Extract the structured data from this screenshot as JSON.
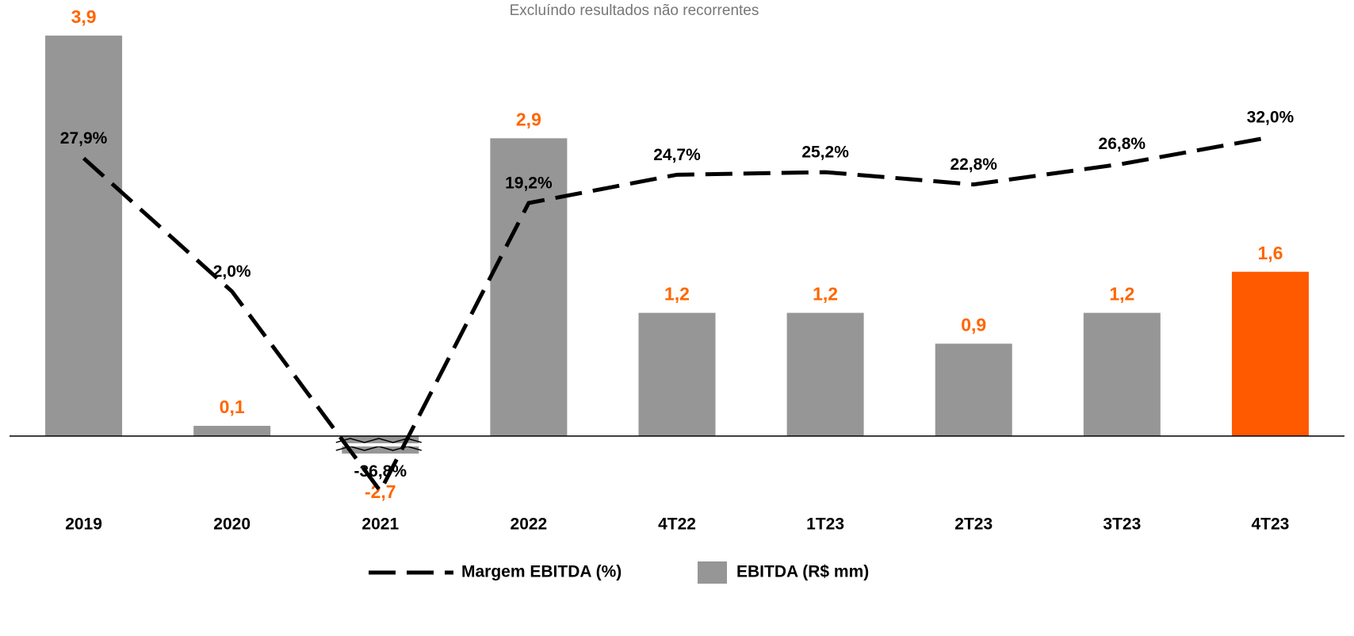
{
  "chart_data": {
    "type": "combo",
    "subtitle": "Excluíndo resultados não recorrentes",
    "categories": [
      "2019",
      "2020",
      "2021",
      "2022",
      "4T22",
      "1T23",
      "2T23",
      "3T23",
      "4T23"
    ],
    "series": [
      {
        "name": "EBITDA (R$ mm)",
        "type": "bar",
        "color": "#969696",
        "colors": [
          "#969696",
          "#969696",
          "#969696",
          "#969696",
          "#969696",
          "#969696",
          "#969696",
          "#969696",
          "#ff5a00"
        ],
        "label_color": "#ff6600",
        "values": [
          3.9,
          0.1,
          -2.7,
          2.9,
          1.2,
          1.2,
          0.9,
          1.2,
          1.6
        ],
        "value_labels": [
          "3,9",
          "0,1",
          "-2,7",
          "2,9",
          "1,2",
          "1,2",
          "0,9",
          "1,2",
          "1,6"
        ]
      },
      {
        "name": "Margem EBITDA (%)",
        "type": "line",
        "axis": "y2",
        "color": "#000000",
        "values": [
          27.9,
          2.0,
          -36.8,
          19.2,
          24.7,
          25.2,
          22.8,
          26.8,
          32.0
        ],
        "value_labels": [
          "27,9%",
          "2,0%",
          "-36,8%",
          "19,2%",
          "24,7%",
          "25,2%",
          "22,8%",
          "26,8%",
          "32,0%"
        ]
      }
    ],
    "ylim": [
      -1.9,
      4.2
    ],
    "y2lim": [
      -40,
      34
    ]
  }
}
